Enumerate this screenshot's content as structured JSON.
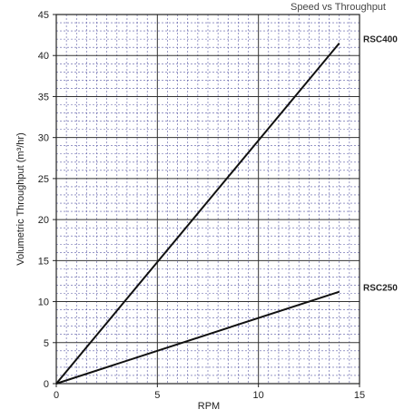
{
  "chart_data": {
    "type": "line",
    "title": "Speed vs Throughput",
    "xlabel": "RPM",
    "ylabel": "Volumetric Throughput (m³/hr)",
    "xlim": [
      0,
      15
    ],
    "ylim": [
      0,
      45
    ],
    "x_ticks": [
      0,
      5,
      10,
      15
    ],
    "y_ticks": [
      0,
      5,
      10,
      15,
      20,
      25,
      30,
      35,
      40,
      45
    ],
    "grid": true,
    "series": [
      {
        "name": "RSC400",
        "x": [
          0,
          14
        ],
        "y": [
          0,
          41.5
        ]
      },
      {
        "name": "RSC250",
        "x": [
          0,
          14
        ],
        "y": [
          0,
          11.2
        ]
      }
    ]
  }
}
